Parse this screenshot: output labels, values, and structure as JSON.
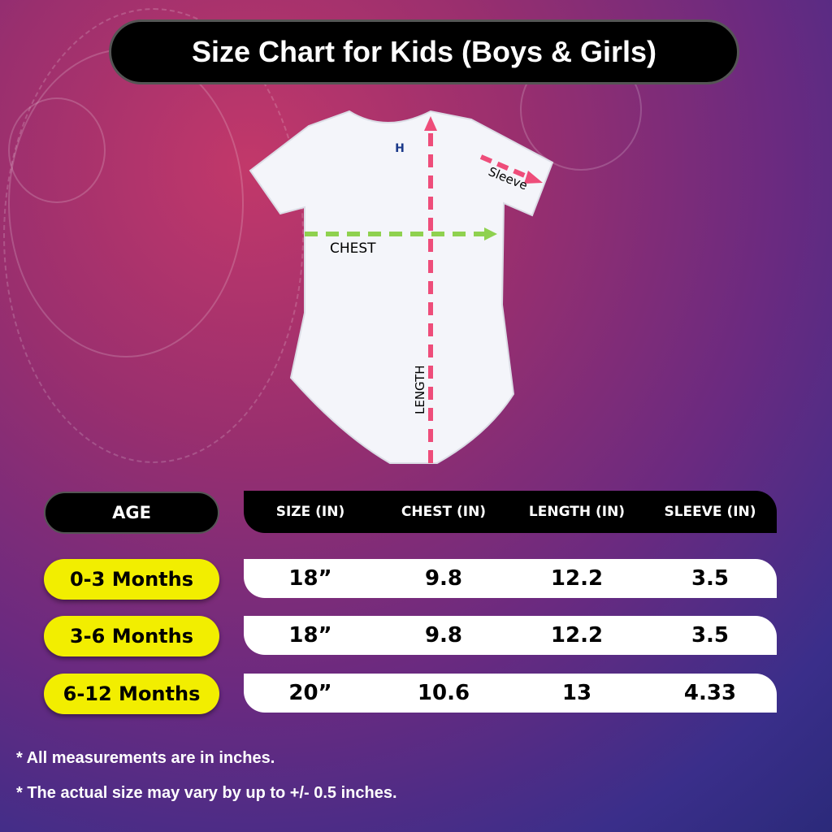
{
  "title": "Size Chart for Kids (Boys & Girls)",
  "diagram": {
    "chest_label": "CHEST",
    "length_label": "LENGTH",
    "sleeve_label": "Sleeve",
    "logo_text": "H",
    "chest_color": "#8fd14f",
    "length_color": "#ee4d7a"
  },
  "table": {
    "age_header": "AGE",
    "headers": [
      "SIZE (IN)",
      "CHEST (IN)",
      "LENGTH (IN)",
      "SLEEVE (IN)"
    ],
    "rows": [
      {
        "age": "0-3 Months",
        "cells": [
          "18”",
          "9.8",
          "12.2",
          "3.5"
        ]
      },
      {
        "age": "3-6 Months",
        "cells": [
          "18”",
          "9.8",
          "12.2",
          "3.5"
        ]
      },
      {
        "age": "6-12 Months",
        "cells": [
          "20”",
          "10.6",
          "13",
          "4.33"
        ]
      }
    ]
  },
  "notes": [
    "* All measurements are in inches.",
    "* The actual size may vary by up to +/- 0.5 inches."
  ]
}
